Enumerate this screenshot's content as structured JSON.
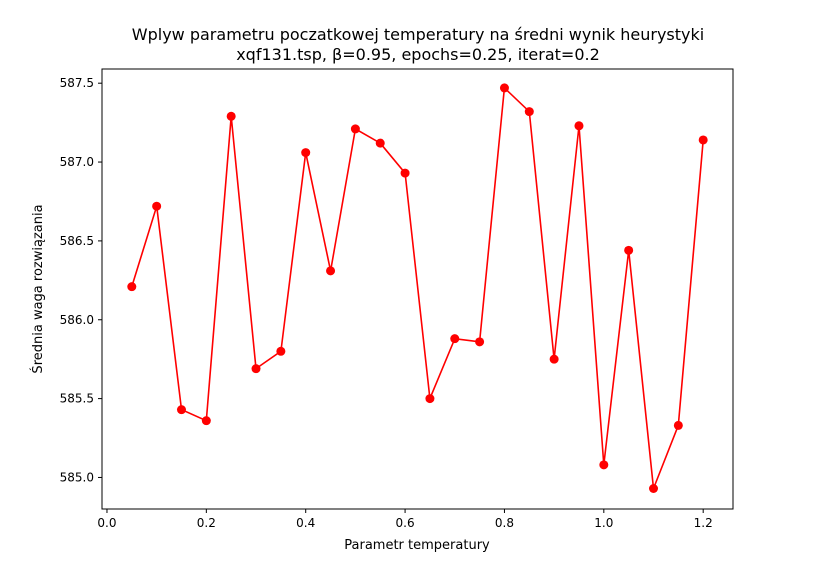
{
  "chart_data": {
    "type": "line",
    "title": "Wplyw parametru poczatkowej temperatury na średni wynik heurystyki",
    "subtitle": "xqf131.tsp, β=0.95, epochs=0.25, iterat=0.2",
    "xlabel": "Parametr temperatury",
    "ylabel": "Średnia waga rozwiązania",
    "xlim": [
      -0.01,
      1.26
    ],
    "ylim": [
      584.8,
      587.59
    ],
    "xticks": [
      0.0,
      0.2,
      0.4,
      0.6,
      0.8,
      1.0,
      1.2
    ],
    "xtick_labels": [
      "0.0",
      "0.2",
      "0.4",
      "0.6",
      "0.8",
      "1.0",
      "1.2"
    ],
    "yticks": [
      585.0,
      585.5,
      586.0,
      586.5,
      587.0,
      587.5
    ],
    "ytick_labels": [
      "585.0",
      "585.5",
      "586.0",
      "586.5",
      "587.0",
      "587.5"
    ],
    "grid": false,
    "series": [
      {
        "color": "#ff0000",
        "marker": "circle",
        "x": [
          0.05,
          0.1,
          0.15,
          0.2,
          0.25,
          0.3,
          0.35,
          0.4,
          0.45,
          0.5,
          0.55,
          0.6,
          0.65,
          0.7,
          0.75,
          0.8,
          0.85,
          0.9,
          0.95,
          1.0,
          1.05,
          1.1,
          1.15,
          1.2
        ],
        "y": [
          586.21,
          586.72,
          585.43,
          585.36,
          587.29,
          585.69,
          585.8,
          587.06,
          586.31,
          587.21,
          587.12,
          586.93,
          585.5,
          585.88,
          585.86,
          587.47,
          587.32,
          585.75,
          587.23,
          585.08,
          586.44,
          584.93,
          585.33,
          587.14
        ]
      }
    ]
  }
}
